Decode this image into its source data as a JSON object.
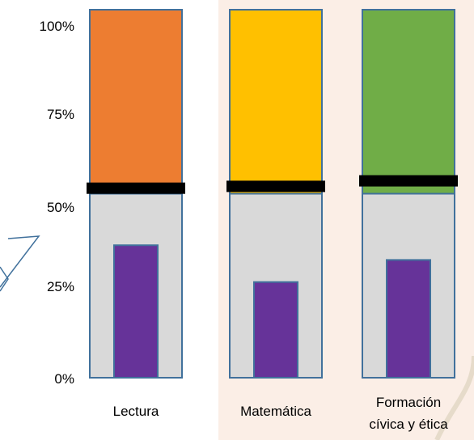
{
  "chart_data": {
    "type": "bar",
    "categories": [
      "Lectura",
      "Matemática",
      "Formación cívica y ética"
    ],
    "category_label_lines": [
      [
        "Lectura"
      ],
      [
        "Matemática"
      ],
      [
        "Formación",
        "cívica y ética"
      ]
    ],
    "y_ticks": [
      "100%",
      "75%",
      "50%",
      "25%",
      "0%"
    ],
    "ylim": [
      0,
      100
    ],
    "bands": [
      {
        "name": "lower",
        "color": "#d9d9d9",
        "values": [
          50,
          50,
          50
        ]
      },
      {
        "name": "upper",
        "colors": [
          "#ed7d31",
          "#ffc000",
          "#70ad47"
        ],
        "values": [
          50,
          50,
          50
        ]
      }
    ],
    "series": [
      {
        "values": [
          36,
          26,
          32
        ]
      }
    ],
    "markers": [
      51.5,
      52,
      53.5
    ],
    "marker_color": "#000000",
    "bar_color": "#663399",
    "outline_color": "#41719c"
  }
}
